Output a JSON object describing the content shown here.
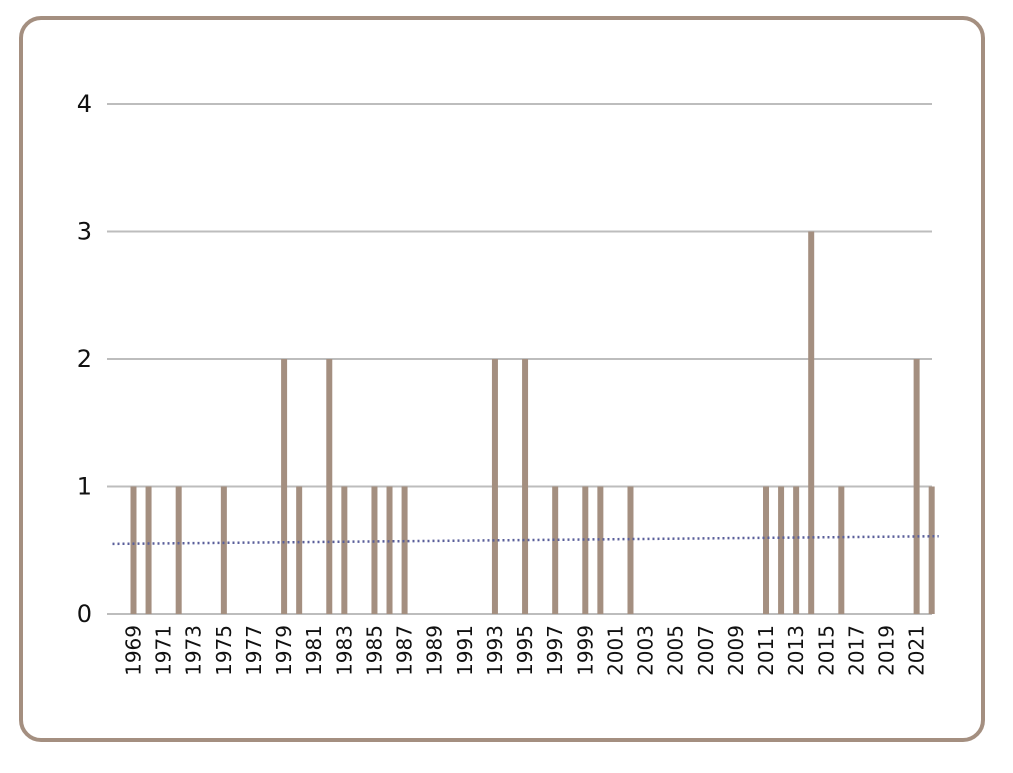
{
  "chart_data": {
    "type": "bar",
    "title": "",
    "xlabel": "",
    "ylabel": "",
    "ylim": [
      0,
      4
    ],
    "yticks": [
      0,
      1,
      2,
      3,
      4
    ],
    "grid": true,
    "legend": "none",
    "categories": [
      1969,
      1970,
      1971,
      1972,
      1973,
      1974,
      1975,
      1976,
      1977,
      1978,
      1979,
      1980,
      1981,
      1982,
      1983,
      1984,
      1985,
      1986,
      1987,
      1988,
      1989,
      1990,
      1991,
      1992,
      1993,
      1994,
      1995,
      1996,
      1997,
      1998,
      1999,
      2000,
      2001,
      2002,
      2003,
      2004,
      2005,
      2006,
      2007,
      2008,
      2009,
      2010,
      2011,
      2012,
      2013,
      2014,
      2015,
      2016,
      2017,
      2018,
      2019,
      2020,
      2021,
      2022
    ],
    "xtick_labels": [
      "1969",
      "1971",
      "1973",
      "1975",
      "1977",
      "1979",
      "1981",
      "1983",
      "1985",
      "1987",
      "1989",
      "1991",
      "1993",
      "1995",
      "1997",
      "1999",
      "2001",
      "2003",
      "2005",
      "2007",
      "2009",
      "2011",
      "2013",
      "2015",
      "2017",
      "2019",
      "2021"
    ],
    "values": [
      1,
      1,
      0,
      1,
      0,
      0,
      1,
      0,
      0,
      0,
      2,
      1,
      0,
      2,
      1,
      0,
      1,
      1,
      1,
      0,
      0,
      0,
      0,
      0,
      2,
      0,
      2,
      0,
      1,
      0,
      1,
      1,
      0,
      1,
      0,
      0,
      0,
      0,
      0,
      0,
      0,
      0,
      1,
      1,
      1,
      3,
      0,
      1,
      0,
      0,
      0,
      0,
      2,
      1
    ],
    "trendline": {
      "type": "linear",
      "style": "dotted",
      "start": [
        1969,
        0.55
      ],
      "end": [
        2022,
        0.61
      ]
    },
    "colors": {
      "bar": "#a48f80",
      "trend": "#5a5f9a",
      "grid": "#bdbdbd",
      "frame": "#a48f80"
    }
  }
}
